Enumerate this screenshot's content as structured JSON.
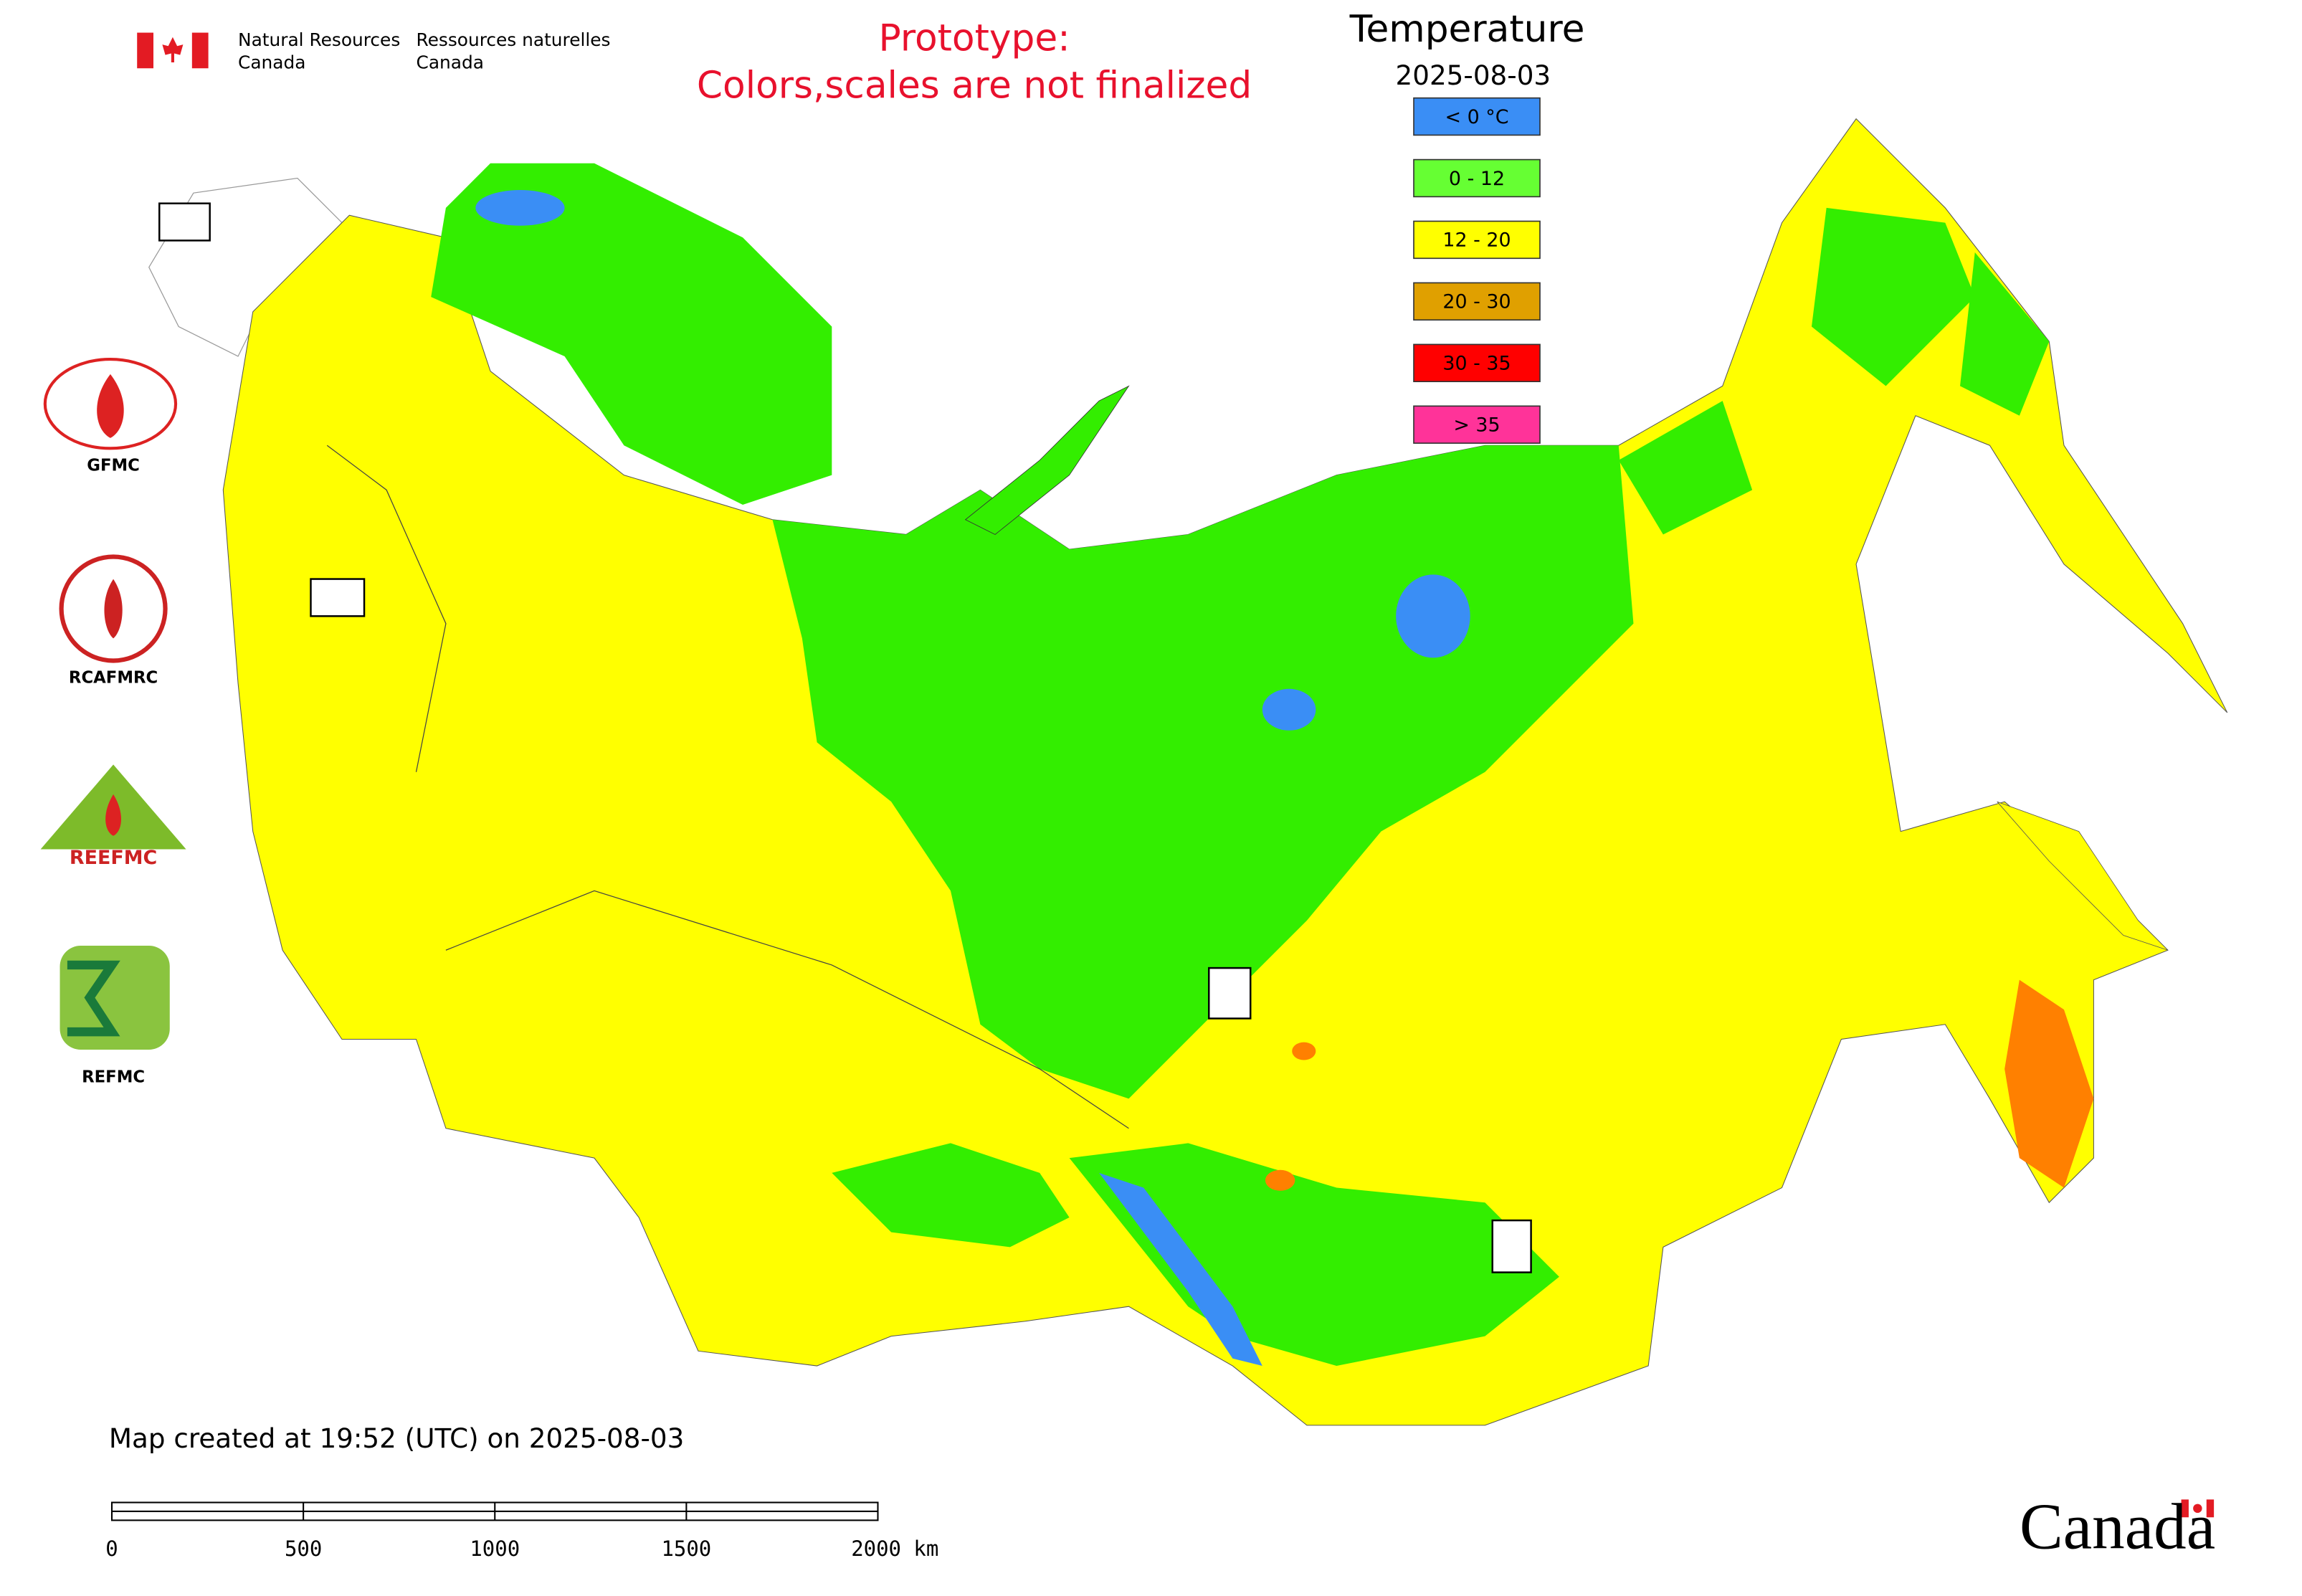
{
  "header": {
    "agency_en": [
      "Natural Resources",
      "Canada"
    ],
    "agency_fr": [
      "Ressources naturelles",
      "Canada"
    ],
    "note": [
      "Prototype:",
      "Colors,scales are not finalized"
    ]
  },
  "legend": {
    "title": "Temperature",
    "date": "2025-08-03",
    "items": [
      {
        "label": "< 0 °C",
        "color": "#3a8ef5"
      },
      {
        "label": "0 - 12",
        "color": "#66ff33"
      },
      {
        "label": "12 - 20",
        "color": "#ffff00"
      },
      {
        "label": "20 - 30",
        "color": "#e0a000"
      },
      {
        "label": "30 - 35",
        "color": "#ff0000"
      },
      {
        "label": "> 35",
        "color": "#ff3399"
      }
    ]
  },
  "logos": [
    "GFMC",
    "RCAFMRC",
    "REEFMC",
    "REFMC"
  ],
  "footer": {
    "created": "Map created at 19:52 (UTC) on 2025-08-03",
    "scale": [
      "0",
      "500",
      "1000",
      "1500",
      "2000 km"
    ],
    "wordmark": "Canada"
  }
}
